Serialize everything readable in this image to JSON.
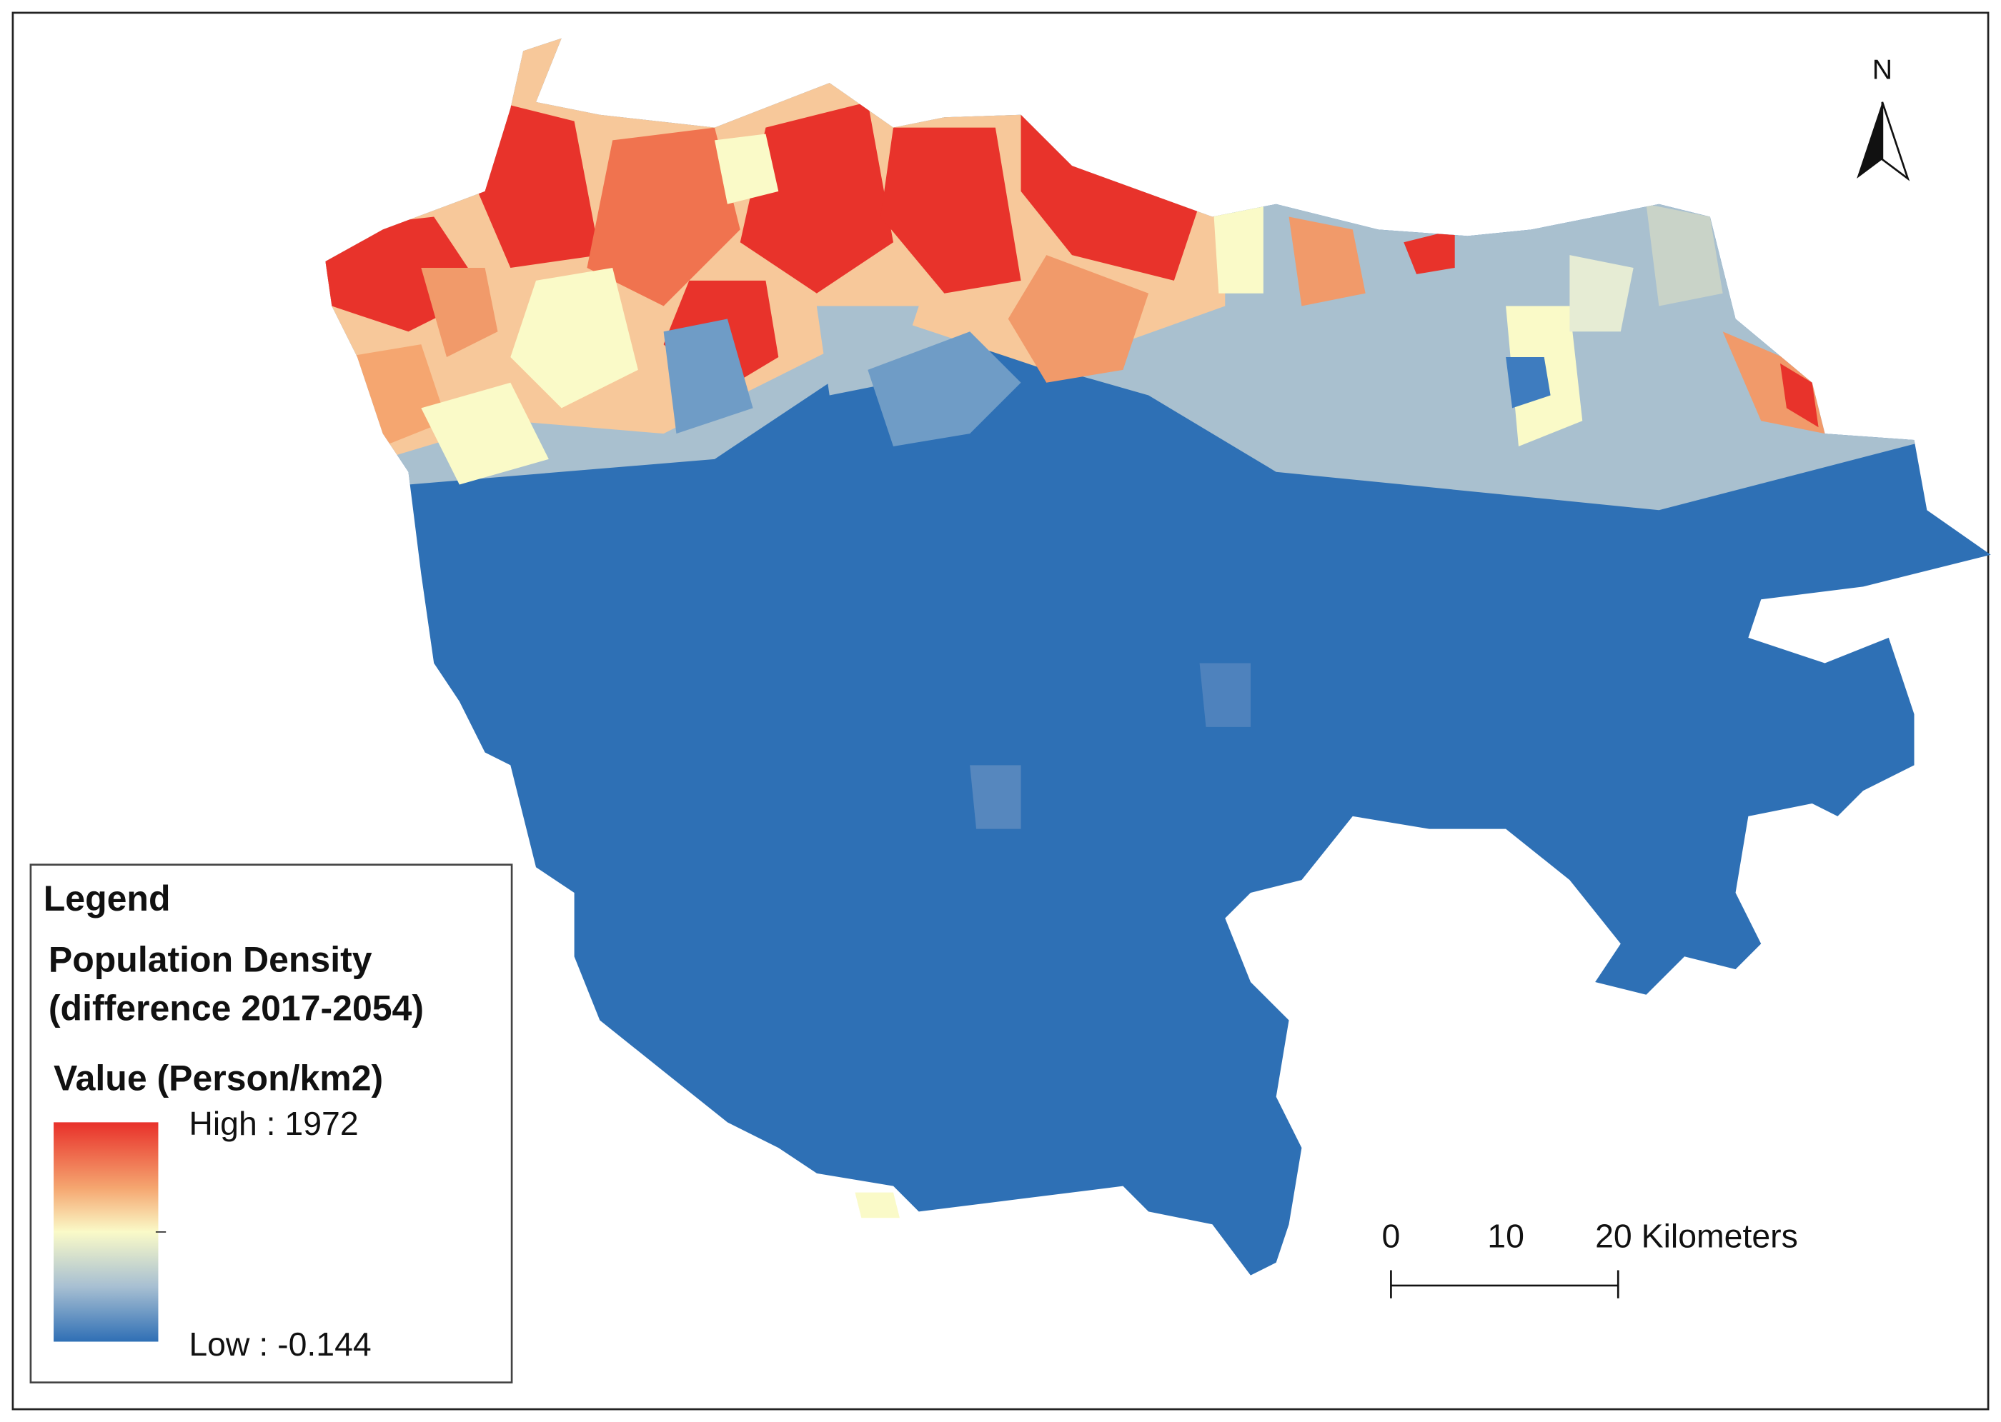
{
  "legend": {
    "title": "Legend",
    "subtitle": [
      "Population Density",
      "(difference 2017-2054)"
    ],
    "field": "Value (Person/km2)",
    "high": "High : 1972",
    "low": "Low : -0.144"
  },
  "scale_bar": {
    "labels": [
      "0",
      "10",
      "20 Kilometers"
    ]
  },
  "north_arrow": {
    "label": "N"
  }
}
